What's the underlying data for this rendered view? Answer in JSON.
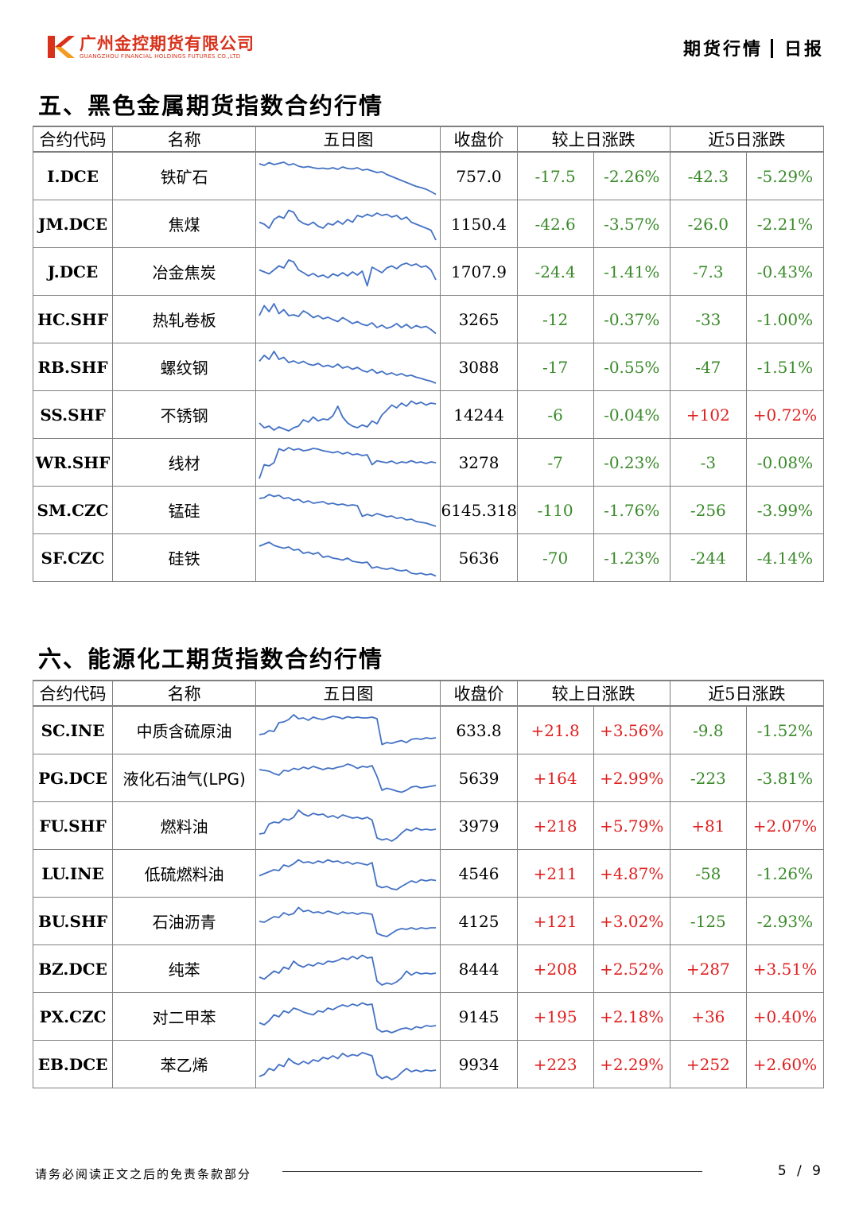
{
  "header": {
    "company_cn": "广州金控期货有限公司",
    "company_en": "GUANGZHOU FINANCIAL HOLDINGS FUTURES CO.,LTD",
    "logo_letter": "K",
    "report_type": "期货行情",
    "report_freq": "日报",
    "brand_color": "#d8321c"
  },
  "columns": {
    "code": "合约代码",
    "name": "名称",
    "chart": "五日图",
    "close": "收盘价",
    "daily": "较上日涨跌",
    "five_day": "近5日涨跌"
  },
  "colors": {
    "up": "#e02020",
    "down": "#3a8a2a",
    "sparkline": "#4472c4"
  },
  "sections": [
    {
      "title": "五、黑色金属期货指数合约行情",
      "rows": [
        {
          "code": "I.DCE",
          "name": "铁矿石",
          "close": "757.0",
          "d_chg": "-17.5",
          "d_pct": "-2.26%",
          "w_chg": "-42.3",
          "w_pct": "-5.29%",
          "d_dir": "down",
          "w_dir": "down",
          "spark": [
            0.82,
            0.78,
            0.85,
            0.8,
            0.83,
            0.86,
            0.79,
            0.82,
            0.76,
            0.73,
            0.75,
            0.72,
            0.7,
            0.71,
            0.69,
            0.72,
            0.68,
            0.74,
            0.7,
            0.69,
            0.72,
            0.66,
            0.68,
            0.64,
            0.6,
            0.62,
            0.55,
            0.5,
            0.45,
            0.4,
            0.35,
            0.3,
            0.25,
            0.22,
            0.18,
            0.12,
            0.05
          ]
        },
        {
          "code": "JM.DCE",
          "name": "焦煤",
          "close": "1150.4",
          "d_chg": "-42.6",
          "d_pct": "-3.57%",
          "w_chg": "-26.0",
          "w_pct": "-2.21%",
          "d_dir": "down",
          "w_dir": "down",
          "spark": [
            0.55,
            0.5,
            0.4,
            0.62,
            0.7,
            0.65,
            0.85,
            0.8,
            0.6,
            0.52,
            0.48,
            0.55,
            0.45,
            0.4,
            0.52,
            0.48,
            0.58,
            0.5,
            0.62,
            0.55,
            0.72,
            0.68,
            0.75,
            0.7,
            0.78,
            0.72,
            0.75,
            0.68,
            0.72,
            0.62,
            0.68,
            0.55,
            0.5,
            0.45,
            0.4,
            0.35,
            0.1
          ]
        },
        {
          "code": "J.DCE",
          "name": "冶金焦炭",
          "close": "1707.9",
          "d_chg": "-24.4",
          "d_pct": "-1.41%",
          "w_chg": "-7.3",
          "w_pct": "-0.43%",
          "d_dir": "down",
          "w_dir": "down",
          "spark": [
            0.55,
            0.5,
            0.45,
            0.55,
            0.65,
            0.6,
            0.8,
            0.75,
            0.55,
            0.48,
            0.4,
            0.46,
            0.38,
            0.42,
            0.35,
            0.45,
            0.4,
            0.48,
            0.4,
            0.5,
            0.42,
            0.52,
            0.15,
            0.62,
            0.55,
            0.48,
            0.6,
            0.65,
            0.58,
            0.68,
            0.72,
            0.66,
            0.7,
            0.62,
            0.65,
            0.55,
            0.3
          ]
        },
        {
          "code": "HC.SHF",
          "name": "热轧卷板",
          "close": "3265",
          "d_chg": "-12",
          "d_pct": "-0.37%",
          "w_chg": "-33",
          "w_pct": "-1.00%",
          "d_dir": "down",
          "w_dir": "down",
          "spark": [
            0.6,
            0.85,
            0.7,
            0.9,
            0.65,
            0.75,
            0.6,
            0.62,
            0.58,
            0.72,
            0.65,
            0.55,
            0.6,
            0.52,
            0.56,
            0.5,
            0.45,
            0.55,
            0.48,
            0.4,
            0.45,
            0.38,
            0.35,
            0.42,
            0.3,
            0.36,
            0.28,
            0.32,
            0.4,
            0.3,
            0.38,
            0.28,
            0.35,
            0.3,
            0.33,
            0.25,
            0.15
          ]
        },
        {
          "code": "RB.SHF",
          "name": "螺纹钢",
          "close": "3088",
          "d_chg": "-17",
          "d_pct": "-0.55%",
          "w_chg": "-47",
          "w_pct": "-1.51%",
          "d_dir": "down",
          "w_dir": "down",
          "spark": [
            0.65,
            0.8,
            0.7,
            0.9,
            0.7,
            0.75,
            0.62,
            0.66,
            0.6,
            0.65,
            0.58,
            0.55,
            0.6,
            0.52,
            0.55,
            0.5,
            0.58,
            0.48,
            0.52,
            0.45,
            0.5,
            0.42,
            0.38,
            0.45,
            0.35,
            0.4,
            0.32,
            0.36,
            0.3,
            0.34,
            0.28,
            0.3,
            0.25,
            0.22,
            0.18,
            0.15,
            0.1
          ]
        },
        {
          "code": "SS.SHF",
          "name": "不锈钢",
          "close": "14244",
          "d_chg": "-6",
          "d_pct": "-0.04%",
          "w_chg": "+102",
          "w_pct": "+0.72%",
          "d_dir": "down",
          "w_dir": "up",
          "spark": [
            0.3,
            0.18,
            0.22,
            0.12,
            0.2,
            0.15,
            0.1,
            0.18,
            0.22,
            0.38,
            0.32,
            0.45,
            0.35,
            0.4,
            0.38,
            0.48,
            0.72,
            0.45,
            0.3,
            0.22,
            0.18,
            0.25,
            0.2,
            0.35,
            0.28,
            0.5,
            0.62,
            0.75,
            0.68,
            0.8,
            0.72,
            0.85,
            0.78,
            0.82,
            0.75,
            0.8,
            0.78
          ]
        },
        {
          "code": "WR.SHF",
          "name": "线材",
          "close": "3278",
          "d_chg": "-7",
          "d_pct": "-0.23%",
          "w_chg": "-3",
          "w_pct": "-0.08%",
          "d_dir": "down",
          "w_dir": "down",
          "spark": [
            0.1,
            0.45,
            0.42,
            0.5,
            0.85,
            0.8,
            0.88,
            0.82,
            0.85,
            0.8,
            0.82,
            0.86,
            0.84,
            0.8,
            0.78,
            0.75,
            0.78,
            0.72,
            0.76,
            0.7,
            0.72,
            0.68,
            0.7,
            0.45,
            0.55,
            0.52,
            0.5,
            0.54,
            0.48,
            0.52,
            0.5,
            0.55,
            0.5,
            0.52,
            0.48,
            0.52,
            0.5
          ]
        },
        {
          "code": "SM.CZC",
          "name": "锰硅",
          "close": "6145.318",
          "d_chg": "-110",
          "d_pct": "-1.76%",
          "w_chg": "-256",
          "w_pct": "-3.99%",
          "d_dir": "down",
          "w_dir": "down",
          "spark": [
            0.8,
            0.82,
            0.9,
            0.85,
            0.88,
            0.8,
            0.82,
            0.75,
            0.78,
            0.7,
            0.74,
            0.68,
            0.7,
            0.72,
            0.66,
            0.68,
            0.64,
            0.66,
            0.62,
            0.64,
            0.62,
            0.35,
            0.4,
            0.36,
            0.42,
            0.38,
            0.34,
            0.36,
            0.3,
            0.32,
            0.26,
            0.28,
            0.22,
            0.2,
            0.18,
            0.14,
            0.1
          ]
        },
        {
          "code": "SF.CZC",
          "name": "硅铁",
          "close": "5636",
          "d_chg": "-70",
          "d_pct": "-1.23%",
          "w_chg": "-244",
          "w_pct": "-4.14%",
          "d_dir": "down",
          "w_dir": "down",
          "spark": [
            0.8,
            0.85,
            0.9,
            0.82,
            0.78,
            0.75,
            0.78,
            0.7,
            0.72,
            0.62,
            0.65,
            0.6,
            0.64,
            0.52,
            0.55,
            0.5,
            0.48,
            0.45,
            0.5,
            0.42,
            0.4,
            0.38,
            0.4,
            0.25,
            0.28,
            0.24,
            0.22,
            0.25,
            0.2,
            0.18,
            0.2,
            0.12,
            0.1,
            0.12,
            0.08,
            0.1,
            0.05
          ]
        }
      ]
    },
    {
      "title": "六、能源化工期货指数合约行情",
      "rows": [
        {
          "code": "SC.INE",
          "name": "中质含硫原油",
          "close": "633.8",
          "d_chg": "+21.8",
          "d_pct": "+3.56%",
          "w_chg": "-9.8",
          "w_pct": "-1.52%",
          "d_dir": "up",
          "w_dir": "down",
          "spark": [
            0.4,
            0.42,
            0.5,
            0.48,
            0.7,
            0.72,
            0.78,
            0.9,
            0.8,
            0.82,
            0.76,
            0.84,
            0.8,
            0.78,
            0.82,
            0.86,
            0.84,
            0.8,
            0.85,
            0.82,
            0.84,
            0.82,
            0.82,
            0.84,
            0.8,
            0.15,
            0.2,
            0.18,
            0.22,
            0.25,
            0.2,
            0.28,
            0.3,
            0.28,
            0.32,
            0.3,
            0.32
          ]
        },
        {
          "code": "PG.DCE",
          "name": "液化石油气(LPG)",
          "close": "5639",
          "d_chg": "+164",
          "d_pct": "+2.99%",
          "w_chg": "-223",
          "w_pct": "-3.81%",
          "d_dir": "up",
          "w_dir": "down",
          "spark": [
            0.72,
            0.7,
            0.68,
            0.62,
            0.58,
            0.7,
            0.68,
            0.75,
            0.72,
            0.78,
            0.74,
            0.8,
            0.76,
            0.72,
            0.76,
            0.74,
            0.78,
            0.8,
            0.86,
            0.82,
            0.75,
            0.8,
            0.78,
            0.82,
            0.55,
            0.2,
            0.25,
            0.22,
            0.18,
            0.15,
            0.2,
            0.28,
            0.3,
            0.26,
            0.28,
            0.3,
            0.32
          ]
        },
        {
          "code": "FU.SHF",
          "name": "燃料油",
          "close": "3979",
          "d_chg": "+218",
          "d_pct": "+5.79%",
          "w_chg": "+81",
          "w_pct": "+2.07%",
          "d_dir": "up",
          "w_dir": "up",
          "spark": [
            0.3,
            0.32,
            0.55,
            0.6,
            0.58,
            0.68,
            0.65,
            0.72,
            0.9,
            0.8,
            0.75,
            0.82,
            0.78,
            0.8,
            0.72,
            0.76,
            0.7,
            0.78,
            0.74,
            0.7,
            0.72,
            0.68,
            0.72,
            0.65,
            0.2,
            0.15,
            0.18,
            0.12,
            0.2,
            0.32,
            0.42,
            0.38,
            0.45,
            0.4,
            0.42,
            0.4,
            0.42
          ]
        },
        {
          "code": "LU.INE",
          "name": "低硫燃料油",
          "close": "4546",
          "d_chg": "+211",
          "d_pct": "+4.87%",
          "w_chg": "-58",
          "w_pct": "-1.26%",
          "d_dir": "up",
          "w_dir": "down",
          "spark": [
            0.45,
            0.5,
            0.55,
            0.6,
            0.58,
            0.72,
            0.68,
            0.75,
            0.85,
            0.78,
            0.8,
            0.76,
            0.82,
            0.78,
            0.85,
            0.8,
            0.82,
            0.76,
            0.8,
            0.74,
            0.78,
            0.75,
            0.72,
            0.78,
            0.2,
            0.15,
            0.18,
            0.12,
            0.1,
            0.18,
            0.25,
            0.32,
            0.28,
            0.35,
            0.32,
            0.35,
            0.33
          ]
        },
        {
          "code": "BU.SHF",
          "name": "石油沥青",
          "close": "4125",
          "d_chg": "+121",
          "d_pct": "+3.02%",
          "w_chg": "-125",
          "w_pct": "-2.93%",
          "d_dir": "up",
          "w_dir": "down",
          "spark": [
            0.5,
            0.48,
            0.55,
            0.62,
            0.6,
            0.72,
            0.66,
            0.7,
            0.85,
            0.75,
            0.78,
            0.72,
            0.74,
            0.7,
            0.76,
            0.72,
            0.68,
            0.74,
            0.7,
            0.72,
            0.68,
            0.72,
            0.7,
            0.68,
            0.2,
            0.15,
            0.12,
            0.2,
            0.28,
            0.32,
            0.3,
            0.34,
            0.3,
            0.34,
            0.32,
            0.34,
            0.34
          ]
        },
        {
          "code": "BZ.DCE",
          "name": "纯苯",
          "close": "8444",
          "d_chg": "+208",
          "d_pct": "+2.52%",
          "w_chg": "+287",
          "w_pct": "+3.51%",
          "d_dir": "up",
          "w_dir": "up",
          "spark": [
            0.3,
            0.25,
            0.35,
            0.45,
            0.4,
            0.55,
            0.5,
            0.7,
            0.6,
            0.55,
            0.62,
            0.58,
            0.66,
            0.62,
            0.7,
            0.68,
            0.72,
            0.78,
            0.74,
            0.82,
            0.76,
            0.85,
            0.78,
            0.8,
            0.2,
            0.1,
            0.15,
            0.12,
            0.18,
            0.28,
            0.45,
            0.35,
            0.42,
            0.38,
            0.4,
            0.38,
            0.4
          ]
        },
        {
          "code": "PX.CZC",
          "name": "对二甲苯",
          "close": "9145",
          "d_chg": "+195",
          "d_pct": "+2.18%",
          "w_chg": "+36",
          "w_pct": "+0.40%",
          "d_dir": "up",
          "w_dir": "up",
          "spark": [
            0.35,
            0.3,
            0.4,
            0.55,
            0.5,
            0.65,
            0.6,
            0.72,
            0.68,
            0.62,
            0.58,
            0.55,
            0.65,
            0.62,
            0.72,
            0.68,
            0.75,
            0.8,
            0.76,
            0.82,
            0.78,
            0.85,
            0.8,
            0.82,
            0.2,
            0.12,
            0.15,
            0.1,
            0.15,
            0.2,
            0.22,
            0.18,
            0.25,
            0.22,
            0.28,
            0.26,
            0.28
          ]
        },
        {
          "code": "EB.DCE",
          "name": "苯乙烯",
          "close": "9934",
          "d_chg": "+223",
          "d_pct": "+2.29%",
          "w_chg": "+252",
          "w_pct": "+2.60%",
          "d_dir": "up",
          "w_dir": "up",
          "spark": [
            0.2,
            0.25,
            0.4,
            0.35,
            0.5,
            0.45,
            0.65,
            0.55,
            0.5,
            0.58,
            0.52,
            0.62,
            0.58,
            0.68,
            0.64,
            0.72,
            0.65,
            0.78,
            0.7,
            0.75,
            0.72,
            0.8,
            0.76,
            0.72,
            0.25,
            0.15,
            0.2,
            0.12,
            0.18,
            0.3,
            0.4,
            0.32,
            0.36,
            0.32,
            0.36,
            0.34,
            0.36
          ]
        }
      ]
    }
  ],
  "footer": {
    "disclaimer": "请务必阅读正文之后的免责条款部分",
    "page": "5 / 9"
  }
}
